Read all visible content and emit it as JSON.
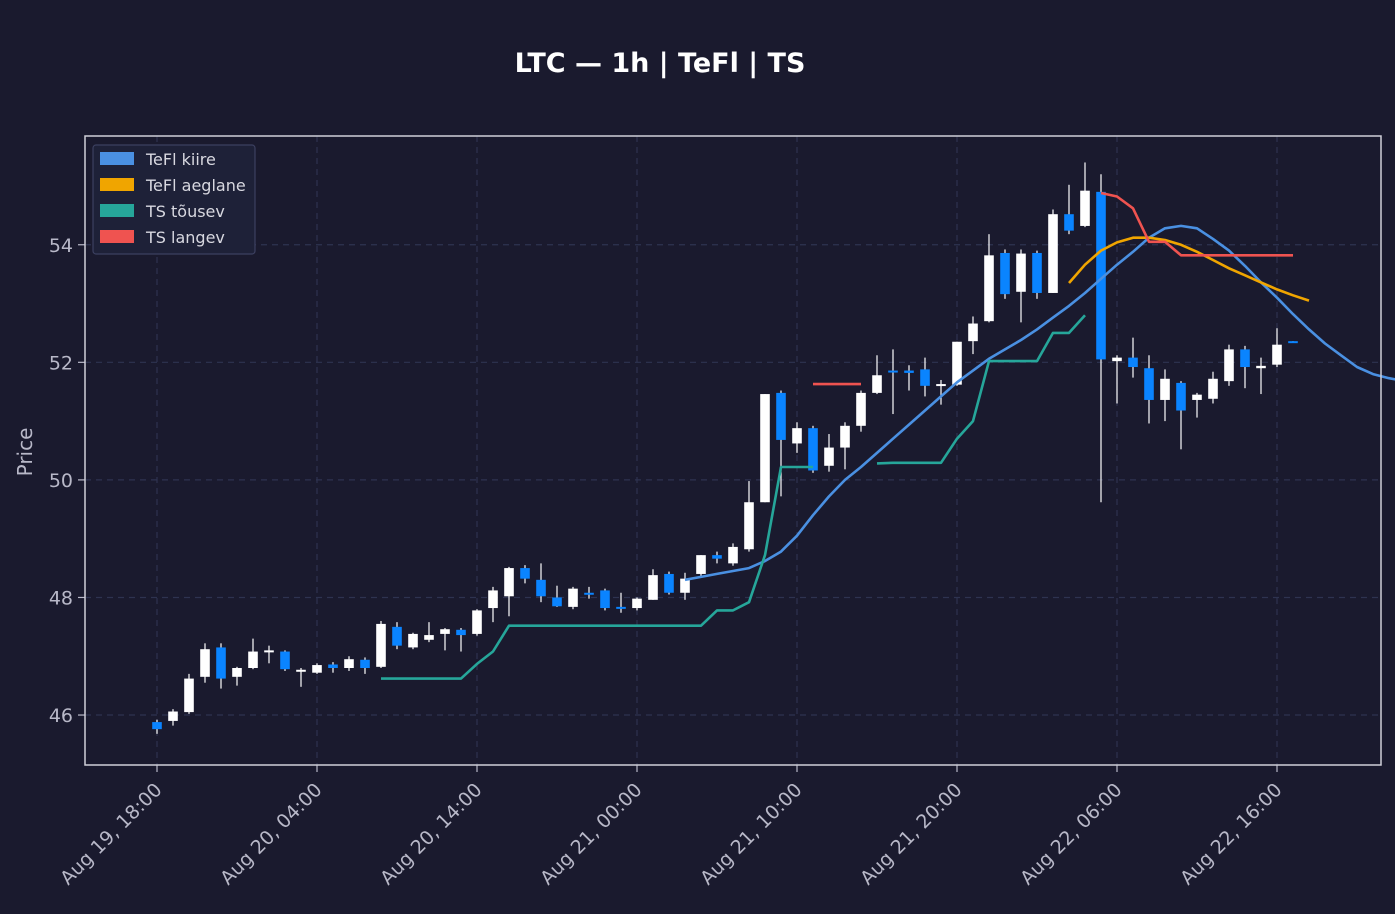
{
  "title": "LTC — 1h  |  TeFl  |  TS",
  "colors": {
    "background": "#1a1a2e",
    "axes_frame": "#d0d0d8",
    "grid": "#2e3350",
    "up_candle": "#ffffff",
    "down_candle": "#0a84ff",
    "tefl_fast": "#4a90e2",
    "tefl_slow": "#f0a500",
    "ts_up": "#26a69a",
    "ts_down": "#ef5350"
  },
  "chart_data": {
    "type": "candlestick",
    "title": "LTC — 1h  |  TeFl  |  TS",
    "ylabel": "Price",
    "xlabel": "",
    "x_tick_labels": [
      "Aug 19, 18:00",
      "Aug 20, 04:00",
      "Aug 20, 14:00",
      "Aug 21, 00:00",
      "Aug 21, 10:00",
      "Aug 21, 20:00",
      "Aug 22, 06:00",
      "Aug 22, 16:00"
    ],
    "x_tick_index": [
      0,
      10,
      20,
      30,
      40,
      50,
      60,
      70
    ],
    "xlim": [
      -4.5,
      76.5
    ],
    "y_ticks": [
      46,
      48,
      50,
      52,
      54
    ],
    "ylim": [
      45.15,
      55.85
    ],
    "grid": true,
    "legend_position": "top-left",
    "legend": [
      {
        "label": "TeFl kiire",
        "color": "#4a90e2"
      },
      {
        "label": "TeFl aeglane",
        "color": "#f0a500"
      },
      {
        "label": "TS tõusev",
        "color": "#26a69a"
      },
      {
        "label": "TS langev",
        "color": "#ef5350"
      }
    ],
    "candles_ohlc": [
      [
        45.88,
        45.92,
        45.68,
        45.76
      ],
      [
        45.9,
        46.1,
        45.82,
        46.06
      ],
      [
        46.05,
        46.7,
        46.02,
        46.62
      ],
      [
        46.65,
        47.22,
        46.55,
        47.12
      ],
      [
        47.15,
        47.22,
        46.45,
        46.62
      ],
      [
        46.65,
        46.82,
        46.5,
        46.8
      ],
      [
        46.8,
        47.3,
        46.78,
        47.08
      ],
      [
        47.08,
        47.18,
        46.88,
        47.1
      ],
      [
        47.08,
        47.1,
        46.75,
        46.78
      ],
      [
        46.76,
        46.8,
        46.48,
        46.77
      ],
      [
        46.72,
        46.88,
        46.7,
        46.85
      ],
      [
        46.86,
        46.9,
        46.72,
        46.8
      ],
      [
        46.8,
        47.0,
        46.75,
        46.95
      ],
      [
        46.94,
        46.98,
        46.7,
        46.8
      ],
      [
        46.82,
        47.6,
        46.8,
        47.55
      ],
      [
        47.5,
        47.58,
        47.12,
        47.18
      ],
      [
        47.15,
        47.4,
        47.12,
        47.38
      ],
      [
        47.28,
        47.58,
        47.24,
        47.36
      ],
      [
        47.38,
        47.48,
        47.1,
        47.46
      ],
      [
        47.45,
        47.48,
        47.08,
        47.36
      ],
      [
        47.38,
        47.8,
        47.35,
        47.78
      ],
      [
        47.82,
        48.18,
        47.58,
        48.12
      ],
      [
        48.02,
        48.52,
        47.68,
        48.5
      ],
      [
        48.5,
        48.55,
        48.24,
        48.32
      ],
      [
        48.3,
        48.58,
        47.92,
        48.02
      ],
      [
        48.0,
        48.2,
        47.84,
        47.85
      ],
      [
        47.84,
        48.18,
        47.8,
        48.15
      ],
      [
        48.08,
        48.18,
        47.98,
        48.05
      ],
      [
        48.12,
        48.15,
        47.78,
        47.82
      ],
      [
        47.84,
        48.08,
        47.74,
        47.82
      ],
      [
        47.82,
        48.0,
        47.78,
        47.98
      ],
      [
        47.96,
        48.48,
        47.96,
        48.38
      ],
      [
        48.4,
        48.44,
        48.05,
        48.08
      ],
      [
        48.08,
        48.42,
        47.96,
        48.32
      ],
      [
        48.4,
        48.72,
        48.35,
        48.72
      ],
      [
        48.72,
        48.78,
        48.58,
        48.66
      ],
      [
        48.58,
        48.92,
        48.54,
        48.86
      ],
      [
        48.82,
        49.98,
        48.78,
        49.62
      ],
      [
        49.62,
        51.46,
        49.62,
        51.46
      ],
      [
        51.48,
        51.52,
        49.72,
        50.68
      ],
      [
        50.62,
        50.98,
        50.46,
        50.88
      ],
      [
        50.88,
        50.92,
        50.12,
        50.16
      ],
      [
        50.24,
        50.78,
        50.14,
        50.55
      ],
      [
        50.55,
        50.98,
        50.18,
        50.92
      ],
      [
        50.92,
        51.52,
        50.82,
        51.48
      ],
      [
        51.48,
        52.12,
        51.46,
        51.78
      ],
      [
        51.86,
        52.22,
        51.12,
        51.85
      ],
      [
        51.86,
        51.95,
        51.52,
        51.82
      ],
      [
        51.88,
        52.08,
        51.42,
        51.6
      ],
      [
        51.62,
        51.7,
        51.28,
        51.63
      ],
      [
        51.62,
        52.35,
        51.6,
        52.35
      ],
      [
        52.36,
        52.78,
        52.14,
        52.66
      ],
      [
        52.7,
        54.18,
        52.68,
        53.82
      ],
      [
        53.86,
        53.92,
        53.08,
        53.16
      ],
      [
        53.2,
        53.92,
        52.68,
        53.85
      ],
      [
        53.86,
        53.9,
        53.08,
        53.18
      ],
      [
        53.18,
        54.6,
        53.18,
        54.52
      ],
      [
        54.52,
        55.02,
        54.18,
        54.24
      ],
      [
        54.32,
        55.4,
        54.3,
        54.92
      ],
      [
        54.9,
        55.2,
        49.62,
        52.05
      ],
      [
        52.02,
        52.12,
        51.3,
        52.08
      ],
      [
        52.08,
        52.42,
        51.74,
        51.92
      ],
      [
        51.9,
        52.12,
        50.96,
        51.36
      ],
      [
        51.36,
        51.88,
        51.0,
        51.72
      ],
      [
        51.65,
        51.68,
        50.52,
        51.18
      ],
      [
        51.36,
        51.48,
        51.06,
        51.45
      ],
      [
        51.38,
        51.84,
        51.3,
        51.72
      ],
      [
        51.68,
        52.3,
        51.6,
        52.22
      ],
      [
        52.22,
        52.28,
        51.56,
        51.92
      ],
      [
        51.9,
        52.08,
        51.46,
        51.94
      ],
      [
        51.96,
        52.58,
        51.92,
        52.3
      ],
      [
        52.36,
        52.36,
        52.34,
        52.34
      ]
    ],
    "series": [
      {
        "name": "TeFl kiire",
        "color": "#4a90e2",
        "start": 33,
        "values": [
          48.3,
          48.35,
          48.4,
          48.45,
          48.5,
          48.62,
          48.78,
          49.05,
          49.4,
          49.72,
          50.0,
          50.22,
          50.46,
          50.7,
          50.94,
          51.18,
          51.42,
          51.66,
          51.86,
          52.06,
          52.22,
          52.38,
          52.56,
          52.76,
          52.96,
          53.18,
          53.42,
          53.66,
          53.88,
          54.12,
          54.28,
          54.32,
          54.28,
          54.1,
          53.9,
          53.64,
          53.36,
          53.1,
          52.82,
          52.56,
          52.32,
          52.12,
          51.92,
          51.8,
          51.73,
          51.68
        ]
      },
      {
        "name": "TeFl aeglane",
        "color": "#f0a500",
        "start": 57,
        "values": [
          53.35,
          53.66,
          53.9,
          54.04,
          54.12,
          54.12,
          54.08,
          54.0,
          53.88,
          53.74,
          53.6,
          53.48,
          53.36,
          53.24,
          53.14,
          53.05
        ]
      },
      {
        "name": "TS tõusev",
        "color": "#26a69a",
        "segments": [
          {
            "start": 14,
            "values": [
              46.62,
              46.62,
              46.62,
              46.62,
              46.62,
              46.62,
              46.87,
              47.08,
              47.52,
              47.52,
              47.52,
              47.52,
              47.52,
              47.52,
              47.52,
              47.52,
              47.52,
              47.52,
              47.52,
              47.52,
              47.52,
              47.78,
              47.78,
              47.92,
              48.72,
              50.22,
              50.22,
              50.22
            ]
          },
          {
            "start": 45,
            "values": [
              50.28,
              50.29,
              50.29,
              50.29,
              50.29,
              50.7,
              51.0,
              52.02,
              52.02,
              52.02,
              52.02,
              52.5,
              52.5,
              52.8
            ]
          }
        ]
      },
      {
        "name": "TS langev",
        "color": "#ef5350",
        "segments": [
          {
            "start": 41,
            "values": [
              51.63,
              51.63,
              51.63,
              51.63
            ]
          },
          {
            "start": 59,
            "values": [
              54.88,
              54.82,
              54.62,
              54.05,
              54.05,
              53.82,
              53.82,
              53.82,
              53.82,
              53.82,
              53.82,
              53.82,
              53.82
            ]
          }
        ]
      }
    ]
  }
}
